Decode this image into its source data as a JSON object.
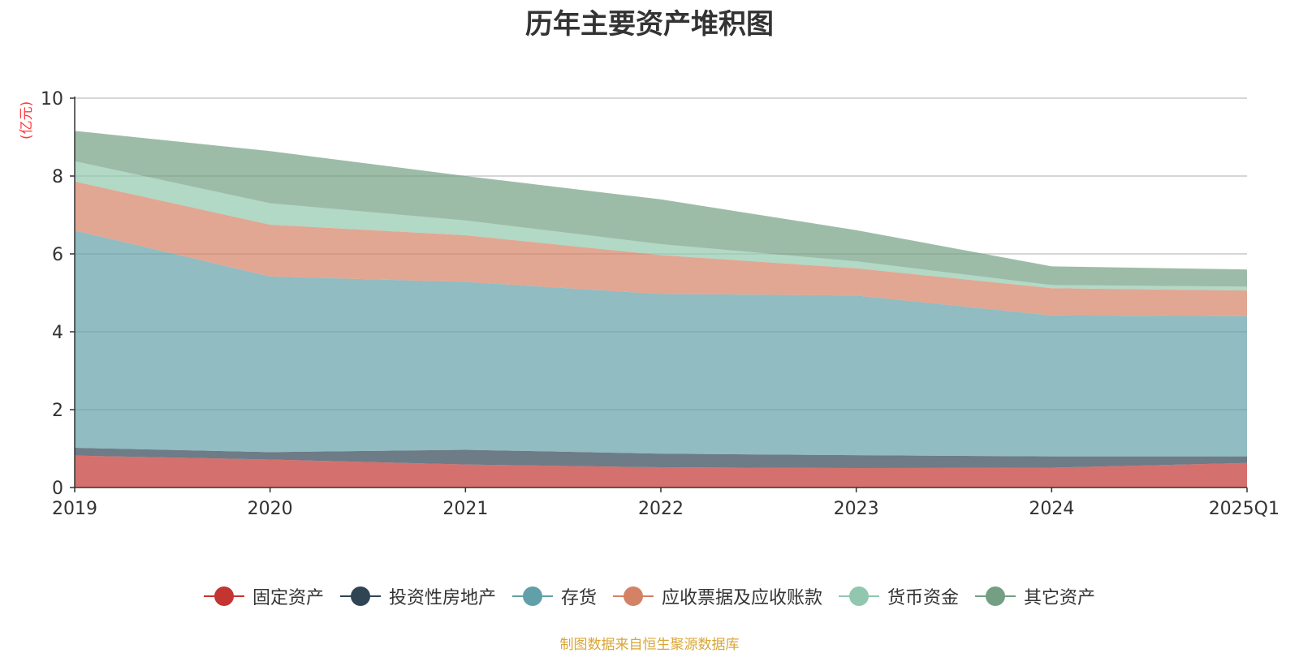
{
  "chart_data": {
    "type": "area",
    "stacked": true,
    "title": "历年主要资产堆积图",
    "unit_label": "(亿元)",
    "categories": [
      "2019",
      "2020",
      "2021",
      "2022",
      "2023",
      "2024",
      "2025Q1"
    ],
    "ylim": [
      0,
      10
    ],
    "yticks": [
      0,
      2,
      4,
      6,
      8,
      10
    ],
    "grid": true,
    "legend_position": "bottom",
    "series": [
      {
        "name": "固定资产",
        "color": "#c23531",
        "values": [
          0.82,
          0.72,
          0.59,
          0.52,
          0.5,
          0.51,
          0.63
        ]
      },
      {
        "name": "投资性房地产",
        "color": "#2f4554",
        "values": [
          0.2,
          0.19,
          0.38,
          0.35,
          0.33,
          0.29,
          0.17
        ]
      },
      {
        "name": "存货",
        "color": "#61a0a8",
        "values": [
          5.58,
          4.51,
          4.31,
          4.1,
          4.1,
          3.62,
          3.6
        ]
      },
      {
        "name": "应收票据及应收账款",
        "color": "#d48265",
        "values": [
          1.26,
          1.33,
          1.2,
          1.0,
          0.7,
          0.7,
          0.66
        ]
      },
      {
        "name": "货币资金",
        "color": "#91c7ae",
        "values": [
          0.52,
          0.55,
          0.38,
          0.28,
          0.18,
          0.08,
          0.1
        ]
      },
      {
        "name": "其它资产",
        "color": "#749f83",
        "values": [
          0.78,
          1.34,
          1.14,
          1.15,
          0.8,
          0.48,
          0.44
        ]
      }
    ]
  },
  "footer": {
    "source": "制图数据来自恒生聚源数据库"
  }
}
